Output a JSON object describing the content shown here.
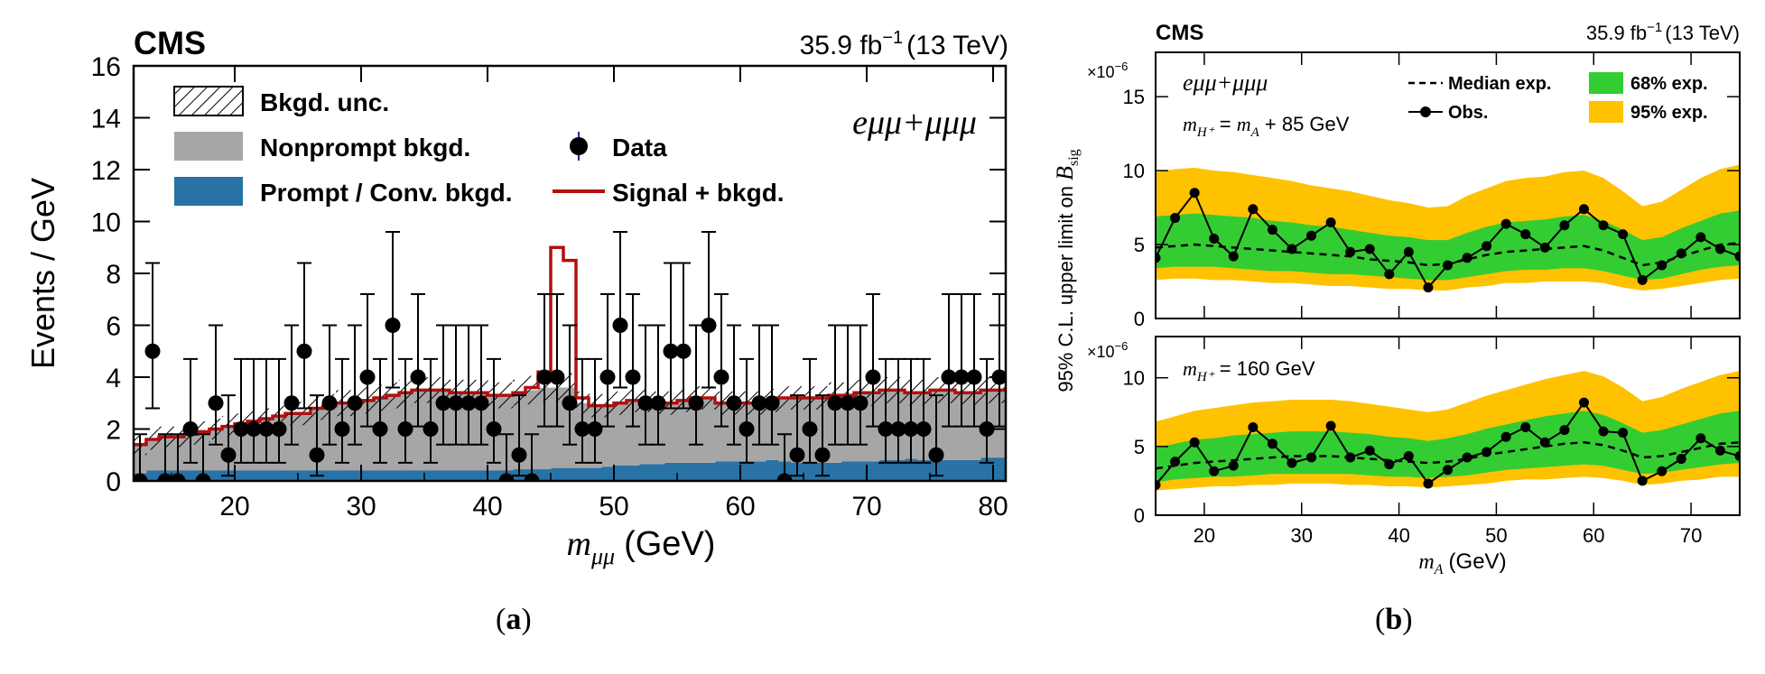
{
  "chart_data": [
    {
      "panel_label": "a",
      "type": "bar",
      "experiment": "CMS",
      "lumi_text": "35.9 fb",
      "lumi_exp": "−1",
      "energy_text": "(13 TeV)",
      "channel": "eμμ+μμμ",
      "xlabel_var": "m",
      "xlabel_sub": "μμ",
      "xlabel_unit": "(GeV)",
      "ylabel": "Events / GeV",
      "xlim": [
        12,
        81
      ],
      "ylim": [
        0,
        16
      ],
      "x_ticks": [
        20,
        30,
        40,
        50,
        60,
        70,
        80
      ],
      "y_ticks": [
        0,
        2,
        4,
        6,
        8,
        10,
        12,
        14,
        16
      ],
      "legend": {
        "bkgd_unc": "Bkgd. unc.",
        "nonprompt": "Nonprompt bkgd.",
        "prompt": "Prompt / Conv. bkgd.",
        "data": "Data",
        "signal": "Signal + bkgd."
      },
      "bin_edges": [
        12,
        13,
        14,
        15,
        16,
        17,
        18,
        19,
        20,
        21,
        22,
        23,
        24,
        25,
        26,
        27,
        28,
        29,
        30,
        31,
        32,
        33,
        34,
        35,
        36,
        37,
        38,
        39,
        40,
        41,
        42,
        43,
        44,
        45,
        46,
        47,
        48,
        49,
        50,
        51,
        52,
        53,
        54,
        55,
        56,
        57,
        58,
        59,
        60,
        61,
        62,
        63,
        64,
        65,
        66,
        67,
        68,
        69,
        70,
        71,
        72,
        73,
        74,
        75,
        76,
        77,
        78,
        79,
        80,
        81
      ],
      "prompt_bkgd": [
        0.3,
        0.4,
        0.4,
        0.4,
        0.4,
        0.4,
        0.4,
        0.4,
        0.4,
        0.4,
        0.4,
        0.4,
        0.4,
        0.4,
        0.4,
        0.4,
        0.4,
        0.4,
        0.4,
        0.4,
        0.4,
        0.4,
        0.4,
        0.4,
        0.4,
        0.4,
        0.4,
        0.4,
        0.4,
        0.4,
        0.45,
        0.45,
        0.45,
        0.5,
        0.5,
        0.5,
        0.5,
        0.55,
        0.6,
        0.6,
        0.65,
        0.65,
        0.7,
        0.7,
        0.7,
        0.7,
        0.75,
        0.75,
        0.75,
        0.75,
        0.8,
        0.75,
        0.7,
        0.7,
        0.7,
        0.7,
        0.75,
        0.75,
        0.75,
        0.8,
        0.8,
        0.85,
        0.8,
        0.85,
        0.8,
        0.8,
        0.8,
        0.9,
        0.9
      ],
      "total_bkgd": [
        1.4,
        1.6,
        1.7,
        1.7,
        1.8,
        1.9,
        2.0,
        2.1,
        2.2,
        2.3,
        2.4,
        2.5,
        2.6,
        2.6,
        2.8,
        2.9,
        3.0,
        3.0,
        3.1,
        3.2,
        3.3,
        3.4,
        3.5,
        3.5,
        3.5,
        3.4,
        3.4,
        3.4,
        3.3,
        3.3,
        3.4,
        3.5,
        3.6,
        3.6,
        3.6,
        3.0,
        2.9,
        2.9,
        3.0,
        3.1,
        3.1,
        3.0,
        3.0,
        3.1,
        3.2,
        3.2,
        3.0,
        3.0,
        3.0,
        3.0,
        3.1,
        3.2,
        3.2,
        3.2,
        3.2,
        3.3,
        3.3,
        3.4,
        3.4,
        3.5,
        3.5,
        3.4,
        3.4,
        3.5,
        3.5,
        3.4,
        3.4,
        3.5,
        3.5
      ],
      "bkgd_unc": [
        0.4,
        0.4,
        0.4,
        0.4,
        0.4,
        0.4,
        0.4,
        0.4,
        0.4,
        0.4,
        0.4,
        0.4,
        0.45,
        0.45,
        0.45,
        0.45,
        0.5,
        0.5,
        0.5,
        0.5,
        0.5,
        0.5,
        0.5,
        0.5,
        0.5,
        0.5,
        0.5,
        0.5,
        0.5,
        0.5,
        0.5,
        0.55,
        0.55,
        0.55,
        0.55,
        0.45,
        0.45,
        0.45,
        0.45,
        0.45,
        0.45,
        0.45,
        0.45,
        0.45,
        0.45,
        0.45,
        0.45,
        0.45,
        0.45,
        0.45,
        0.45,
        0.45,
        0.45,
        0.45,
        0.45,
        0.5,
        0.5,
        0.5,
        0.5,
        0.5,
        0.5,
        0.5,
        0.5,
        0.5,
        0.5,
        0.5,
        0.5,
        0.5,
        0.5
      ],
      "signal_plus_bkgd": [
        1.4,
        1.6,
        1.7,
        1.7,
        1.8,
        1.9,
        2.0,
        2.1,
        2.2,
        2.3,
        2.4,
        2.5,
        2.6,
        2.6,
        2.8,
        2.9,
        3.0,
        3.0,
        3.1,
        3.2,
        3.3,
        3.4,
        3.5,
        3.5,
        3.5,
        3.4,
        3.4,
        3.4,
        3.3,
        3.3,
        3.4,
        3.6,
        4.2,
        9.0,
        8.5,
        3.2,
        2.9,
        2.9,
        3.0,
        3.1,
        3.1,
        3.0,
        3.0,
        3.1,
        3.2,
        3.2,
        3.0,
        3.0,
        3.0,
        3.0,
        3.1,
        3.2,
        3.2,
        3.2,
        3.2,
        3.3,
        3.3,
        3.4,
        3.4,
        3.5,
        3.5,
        3.4,
        3.4,
        3.5,
        3.5,
        3.4,
        3.4,
        3.5,
        3.5
      ],
      "data": {
        "x": [
          12.5,
          13.5,
          14.5,
          15.5,
          16.5,
          17.5,
          18.5,
          19.5,
          20.5,
          21.5,
          22.5,
          23.5,
          24.5,
          25.5,
          26.5,
          27.5,
          28.5,
          29.5,
          30.5,
          31.5,
          32.5,
          33.5,
          34.5,
          35.5,
          36.5,
          37.5,
          38.5,
          39.5,
          40.5,
          41.5,
          42.5,
          43.5,
          44.5,
          45.5,
          46.5,
          47.5,
          48.5,
          49.5,
          50.5,
          51.5,
          52.5,
          53.5,
          54.5,
          55.5,
          56.5,
          57.5,
          58.5,
          59.5,
          60.5,
          61.5,
          62.5,
          63.5,
          64.5,
          65.5,
          66.5,
          67.5,
          68.5,
          69.5,
          70.5,
          71.5,
          72.5,
          73.5,
          74.5,
          75.5,
          76.5,
          77.5,
          78.5,
          79.5,
          80.5
        ],
        "y": [
          0,
          5,
          0,
          0,
          2,
          0,
          3,
          1,
          2,
          2,
          2,
          2,
          3,
          5,
          1,
          3,
          2,
          3,
          4,
          2,
          6,
          2,
          4,
          2,
          3,
          3,
          3,
          3,
          2,
          0,
          1,
          0,
          4,
          4,
          3,
          2,
          2,
          4,
          6,
          4,
          3,
          3,
          5,
          5,
          3,
          6,
          4,
          3,
          2,
          3,
          3,
          0,
          1,
          2,
          1,
          3,
          3,
          3,
          4,
          2,
          2,
          2,
          2,
          1,
          4,
          4,
          4,
          2,
          4
        ],
        "err_up": [
          1.8,
          3.4,
          1.8,
          1.8,
          2.7,
          1.8,
          3.0,
          2.3,
          2.7,
          2.7,
          2.7,
          2.7,
          3.0,
          3.4,
          2.3,
          3.0,
          2.7,
          3.0,
          3.2,
          2.7,
          3.6,
          2.7,
          3.2,
          2.7,
          3.0,
          3.0,
          3.0,
          3.0,
          2.7,
          1.8,
          2.3,
          1.8,
          3.2,
          3.2,
          3.0,
          2.7,
          2.7,
          3.2,
          3.6,
          3.2,
          3.0,
          3.0,
          3.4,
          3.4,
          3.0,
          3.6,
          3.2,
          3.0,
          2.7,
          3.0,
          3.0,
          1.8,
          2.3,
          2.7,
          2.3,
          3.0,
          3.0,
          3.0,
          3.2,
          2.7,
          2.7,
          2.7,
          2.7,
          2.3,
          3.2,
          3.2,
          3.2,
          2.7,
          3.2
        ],
        "err_down": [
          0,
          2.2,
          0,
          0,
          1.3,
          0,
          1.6,
          0.8,
          1.3,
          1.3,
          1.3,
          1.3,
          1.6,
          2.2,
          0.8,
          1.6,
          1.3,
          1.6,
          1.9,
          1.3,
          2.4,
          1.3,
          1.9,
          1.3,
          1.6,
          1.6,
          1.6,
          1.6,
          1.3,
          0,
          0.8,
          0,
          1.9,
          1.9,
          1.6,
          1.3,
          1.3,
          1.9,
          2.4,
          1.9,
          1.6,
          1.6,
          2.2,
          2.2,
          1.6,
          2.4,
          1.9,
          1.6,
          1.3,
          1.6,
          1.6,
          0,
          0.8,
          1.3,
          0.8,
          1.6,
          1.6,
          1.6,
          1.9,
          1.3,
          1.3,
          1.3,
          1.3,
          0.8,
          1.9,
          1.9,
          1.9,
          1.3,
          1.9
        ]
      },
      "colors": {
        "prompt": "#2872a6",
        "nonprompt": "#a6a6a6",
        "signal": "#b01010",
        "data": "#000000"
      }
    },
    {
      "panel_label": "b",
      "type": "line",
      "experiment": "CMS",
      "lumi_text": "35.9 fb",
      "lumi_exp": "−1",
      "energy_text": "(13 TeV)",
      "channel": "eμμ+μμμ",
      "ylabel_text": "95% C.L. upper limit on ",
      "ylabel_var": "B",
      "ylabel_sub": "sig",
      "xlabel_var": "m",
      "xlabel_sub": "A",
      "xlabel_unit": "(GeV)",
      "multiplier_base": "×10",
      "multiplier_exp": "−6",
      "xlim": [
        15,
        75
      ],
      "x_ticks": [
        20,
        30,
        40,
        50,
        60,
        70
      ],
      "legend": {
        "median": "Median exp.",
        "obs": "Obs.",
        "band68": "68% exp.",
        "band95": "95% exp."
      },
      "colors": {
        "band68": "#33cc33",
        "band95": "#ffc200",
        "line": "#000000"
      },
      "panels": [
        {
          "mass_hypothesis": {
            "var": "m",
            "sub": "H⁺",
            "text": " = ",
            "var2": "m",
            "sub2": "A",
            "tail": " + 85 GeV"
          },
          "ylim": [
            0,
            18
          ],
          "y_ticks": [
            0,
            5,
            10,
            15
          ],
          "x": [
            15,
            17,
            19,
            21,
            23,
            25,
            27,
            29,
            31,
            33,
            35,
            37,
            39,
            41,
            43,
            45,
            47,
            49,
            51,
            53,
            55,
            57,
            59,
            61,
            63,
            65,
            67,
            69,
            71,
            73,
            75
          ],
          "median": [
            4.8,
            4.9,
            5.0,
            4.9,
            4.8,
            4.7,
            4.6,
            4.5,
            4.4,
            4.3,
            4.2,
            4.0,
            3.9,
            3.8,
            3.6,
            3.7,
            4.0,
            4.3,
            4.5,
            4.6,
            4.7,
            4.8,
            4.9,
            4.6,
            4.1,
            3.6,
            3.8,
            4.2,
            4.6,
            5.0,
            5.1
          ],
          "band68_lo": [
            3.4,
            3.5,
            3.5,
            3.5,
            3.4,
            3.3,
            3.2,
            3.2,
            3.1,
            3.0,
            3.0,
            2.9,
            2.8,
            2.7,
            2.6,
            2.6,
            2.8,
            3.0,
            3.2,
            3.3,
            3.3,
            3.4,
            3.4,
            3.2,
            2.9,
            2.6,
            2.7,
            3.0,
            3.3,
            3.5,
            3.6
          ],
          "band68_hi": [
            6.9,
            7.0,
            7.1,
            7.0,
            6.9,
            6.8,
            6.6,
            6.5,
            6.3,
            6.2,
            6.0,
            5.8,
            5.6,
            5.5,
            5.3,
            5.3,
            5.8,
            6.2,
            6.5,
            6.6,
            6.7,
            6.9,
            7.0,
            6.6,
            6.0,
            5.3,
            5.5,
            6.1,
            6.6,
            7.1,
            7.3
          ],
          "band95_lo": [
            2.6,
            2.7,
            2.7,
            2.6,
            2.6,
            2.5,
            2.4,
            2.4,
            2.3,
            2.2,
            2.2,
            2.1,
            2.0,
            2.0,
            1.9,
            1.9,
            2.1,
            2.2,
            2.4,
            2.4,
            2.5,
            2.5,
            2.5,
            2.4,
            2.1,
            1.9,
            2.0,
            2.2,
            2.4,
            2.6,
            2.7
          ],
          "band95_hi": [
            9.9,
            10.1,
            10.2,
            10.0,
            9.9,
            9.7,
            9.5,
            9.3,
            9.0,
            8.8,
            8.6,
            8.3,
            8.0,
            7.8,
            7.5,
            7.6,
            8.3,
            8.8,
            9.3,
            9.5,
            9.6,
            9.9,
            10.0,
            9.5,
            8.6,
            7.6,
            7.9,
            8.7,
            9.5,
            10.1,
            10.4
          ],
          "obs": [
            4.1,
            6.8,
            8.5,
            5.4,
            4.2,
            7.4,
            6.0,
            4.7,
            5.6,
            6.5,
            4.5,
            4.7,
            3.0,
            4.5,
            2.1,
            3.6,
            4.1,
            4.9,
            6.4,
            5.7,
            4.8,
            6.3,
            7.4,
            6.3,
            5.7,
            2.6,
            3.6,
            4.4,
            5.5,
            4.7,
            4.2
          ]
        },
        {
          "mass_hypothesis": {
            "var": "m",
            "sub": "H⁺",
            "text": " = 160 GeV",
            "var2": "",
            "sub2": "",
            "tail": ""
          },
          "ylim": [
            0,
            13
          ],
          "y_ticks": [
            0,
            5,
            10
          ],
          "x": [
            15,
            17,
            19,
            21,
            23,
            25,
            27,
            29,
            31,
            33,
            35,
            37,
            39,
            41,
            43,
            45,
            47,
            49,
            51,
            53,
            55,
            57,
            59,
            61,
            63,
            65,
            67,
            69,
            71,
            73,
            75
          ],
          "median": [
            3.4,
            3.6,
            3.8,
            3.9,
            4.0,
            4.1,
            4.2,
            4.3,
            4.3,
            4.3,
            4.2,
            4.1,
            4.0,
            3.9,
            3.8,
            3.9,
            4.1,
            4.4,
            4.6,
            4.8,
            5.0,
            5.2,
            5.3,
            5.1,
            4.7,
            4.2,
            4.3,
            4.6,
            4.9,
            5.2,
            5.3
          ],
          "band68_lo": [
            2.4,
            2.6,
            2.7,
            2.8,
            2.8,
            2.9,
            3.0,
            3.0,
            3.0,
            3.0,
            3.0,
            2.9,
            2.8,
            2.8,
            2.7,
            2.8,
            2.9,
            3.1,
            3.3,
            3.4,
            3.5,
            3.6,
            3.7,
            3.6,
            3.3,
            3.0,
            3.1,
            3.3,
            3.5,
            3.7,
            3.8
          ],
          "band68_hi": [
            4.9,
            5.2,
            5.5,
            5.6,
            5.8,
            5.9,
            6.0,
            6.1,
            6.1,
            6.1,
            6.0,
            5.9,
            5.7,
            5.6,
            5.4,
            5.6,
            5.9,
            6.3,
            6.6,
            6.9,
            7.2,
            7.4,
            7.6,
            7.3,
            6.7,
            6.0,
            6.2,
            6.6,
            7.0,
            7.4,
            7.6
          ],
          "band95_lo": [
            1.8,
            1.9,
            2.0,
            2.1,
            2.1,
            2.2,
            2.2,
            2.3,
            2.3,
            2.3,
            2.2,
            2.2,
            2.1,
            2.1,
            2.0,
            2.1,
            2.2,
            2.3,
            2.5,
            2.6,
            2.6,
            2.7,
            2.8,
            2.7,
            2.5,
            2.2,
            2.3,
            2.5,
            2.6,
            2.8,
            2.8
          ],
          "band95_hi": [
            6.8,
            7.2,
            7.6,
            7.8,
            8.0,
            8.2,
            8.3,
            8.4,
            8.4,
            8.4,
            8.3,
            8.1,
            7.9,
            7.7,
            7.5,
            7.7,
            8.2,
            8.7,
            9.1,
            9.5,
            9.9,
            10.2,
            10.5,
            10.1,
            9.3,
            8.3,
            8.6,
            9.2,
            9.7,
            10.2,
            10.5
          ],
          "obs": [
            2.2,
            3.9,
            5.3,
            3.2,
            3.6,
            6.4,
            5.2,
            3.8,
            4.2,
            6.5,
            4.2,
            4.7,
            3.7,
            4.3,
            2.3,
            3.3,
            4.2,
            4.6,
            5.7,
            6.4,
            5.3,
            6.2,
            8.2,
            6.1,
            6.0,
            2.5,
            3.2,
            4.1,
            5.6,
            4.7,
            4.3
          ]
        }
      ]
    }
  ],
  "captions": {
    "a": "a",
    "b": "b"
  }
}
